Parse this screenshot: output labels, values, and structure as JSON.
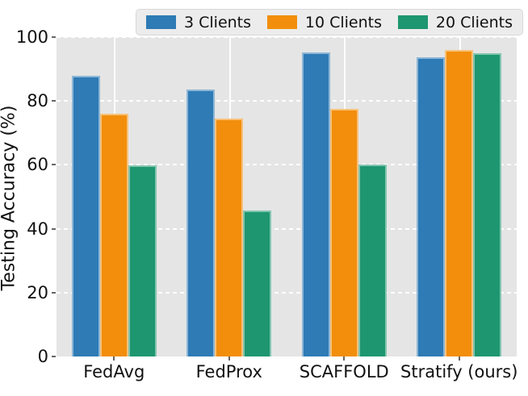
{
  "chart_data": {
    "type": "bar",
    "title": "",
    "xlabel": "",
    "ylabel": "Testing Accuracy (%)",
    "categories": [
      "FedAvg",
      "FedProx",
      "SCAFFOLD",
      "Stratify (ours)"
    ],
    "series": [
      {
        "name": "3 Clients",
        "color": "#2E7BB5",
        "values": [
          88.0,
          83.5,
          95.3,
          93.8
        ]
      },
      {
        "name": "10 Clients",
        "color": "#F28E0C",
        "values": [
          76.0,
          74.5,
          77.6,
          95.9
        ]
      },
      {
        "name": "20 Clients",
        "color": "#1E9670",
        "values": [
          59.9,
          45.8,
          60.0,
          95.0
        ]
      }
    ],
    "ylim": [
      0,
      100
    ],
    "yticks": [
      0,
      20,
      40,
      60,
      80,
      100
    ],
    "legend_position": "top",
    "grid": {
      "y_style": "dashed-white",
      "x_style": "solid-white"
    },
    "plot_background": "#E5E5E5"
  }
}
